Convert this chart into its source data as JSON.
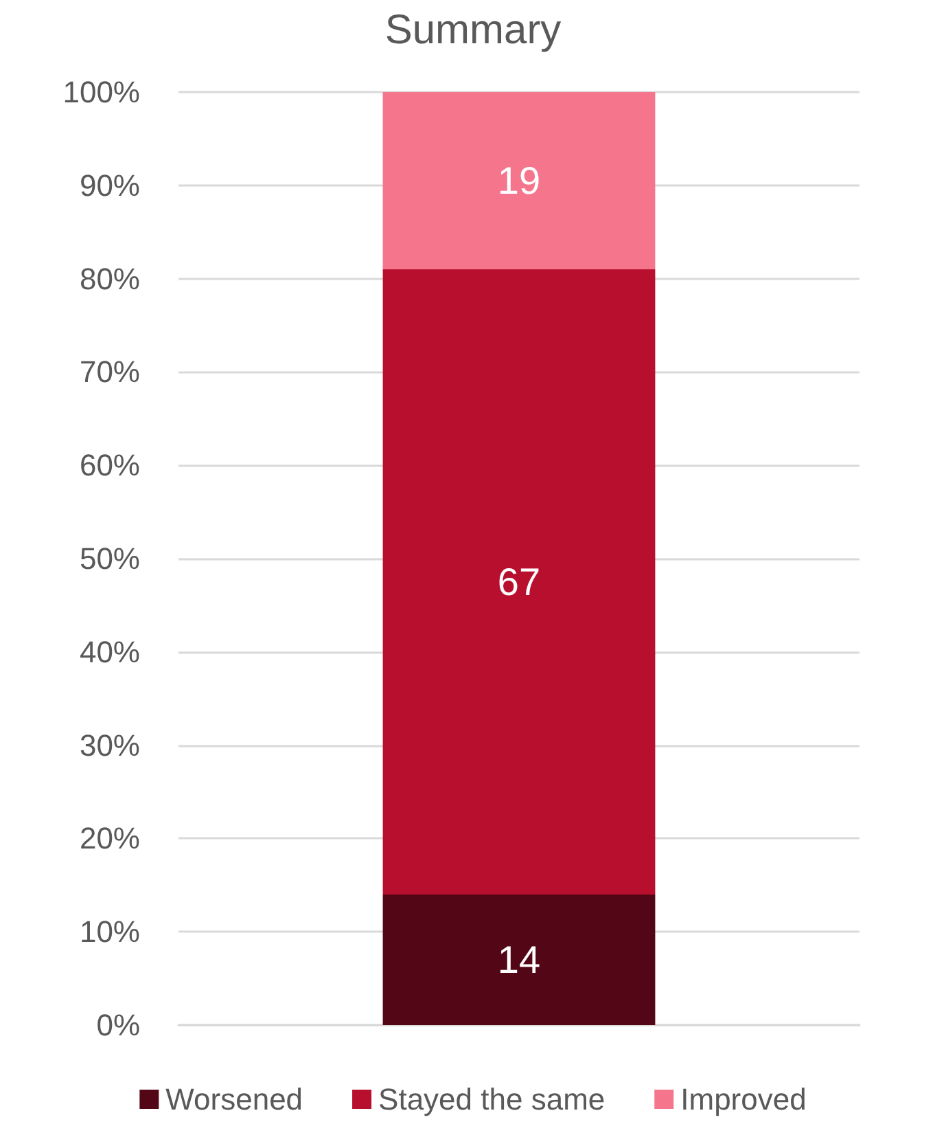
{
  "chart_data": {
    "type": "bar",
    "title": "Summary",
    "categories": [
      null
    ],
    "stacked": true,
    "series": [
      {
        "name": "Worsened",
        "color": "#530616",
        "values": [
          14
        ]
      },
      {
        "name": "Stayed the same",
        "color": "#b80f2e",
        "values": [
          67
        ]
      },
      {
        "name": "Improved",
        "color": "#f4758c",
        "values": [
          19
        ]
      }
    ],
    "ylim": [
      0,
      100
    ],
    "yticks": [
      {
        "value": 0,
        "label": "0%"
      },
      {
        "value": 10,
        "label": "10%"
      },
      {
        "value": 20,
        "label": "20%"
      },
      {
        "value": 30,
        "label": "30%"
      },
      {
        "value": 40,
        "label": "40%"
      },
      {
        "value": 50,
        "label": "50%"
      },
      {
        "value": 60,
        "label": "60%"
      },
      {
        "value": 70,
        "label": "70%"
      },
      {
        "value": 80,
        "label": "80%"
      },
      {
        "value": 90,
        "label": "90%"
      },
      {
        "value": 100,
        "label": "100%"
      }
    ],
    "grid": "y",
    "legend": "bottom",
    "data_labels": true
  }
}
